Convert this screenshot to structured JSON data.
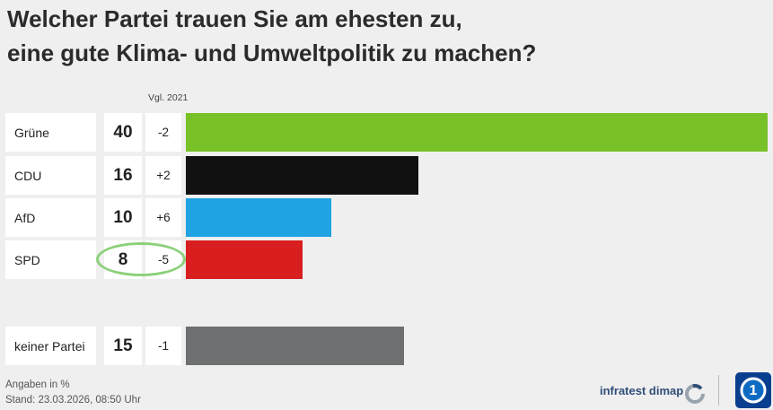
{
  "title_line1": "Welcher Partei trauen Sie am ehesten zu,",
  "title_line2": "eine gute Klima- und Umweltpolitik zu machen?",
  "compare_header": "Vgl. 2021",
  "footer_line1": "Angaben in %",
  "footer_line2": "Stand:  23.03.2026, 08:50 Uhr",
  "brand": "infratest dimap",
  "chart_data": {
    "type": "bar",
    "orientation": "horizontal",
    "categories": [
      "Grüne",
      "CDU",
      "AfD",
      "SPD",
      "keiner Partei"
    ],
    "values": [
      40,
      16,
      10,
      8,
      15
    ],
    "value_labels": [
      "40",
      "16",
      "10",
      "8",
      "15"
    ],
    "change_vs_2021": [
      "-2",
      "+2",
      "+6",
      "-5",
      "-1"
    ],
    "colors": [
      "#78c228",
      "#111111",
      "#1fa3e3",
      "#d81e1e",
      "#6d6f70"
    ],
    "highlight_category": "SPD",
    "highlight_color": "#8cd07a",
    "xlim": [
      0,
      40
    ],
    "unit": "%"
  }
}
